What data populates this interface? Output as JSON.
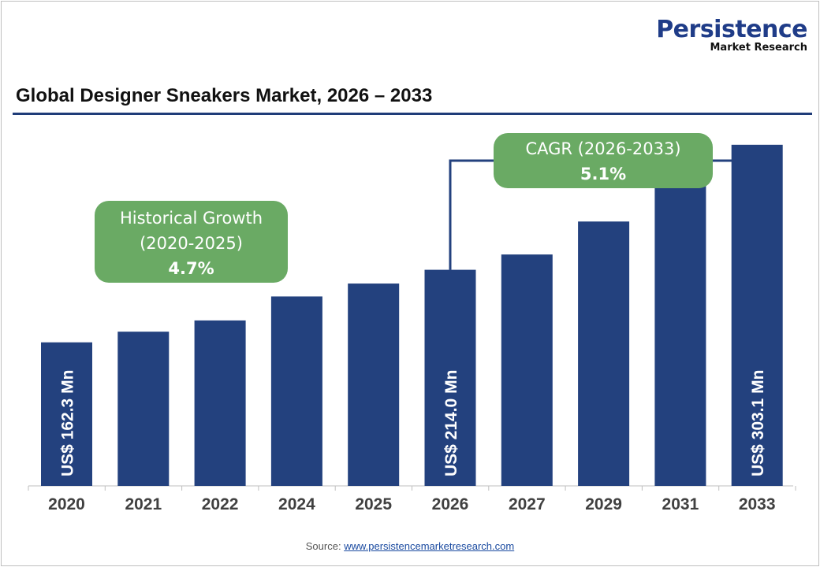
{
  "logo": {
    "main": "Persistence",
    "sub": "Market Research"
  },
  "chart_data": {
    "type": "bar",
    "title": "Global Designer Sneakers Market, 2026 – 2033",
    "categories": [
      "2020",
      "2021",
      "2022",
      "2024",
      "2025",
      "2026",
      "2027",
      "2029",
      "2031",
      "2033"
    ],
    "values": [
      162.3,
      169.9,
      177.9,
      195.0,
      204.2,
      214.0,
      224.9,
      248.4,
      274.4,
      303.1
    ],
    "data_labels": {
      "0": "US$ 162.3 Mn",
      "5": "US$ 214.0 Mn",
      "9": "US$ 303.1 Mn"
    },
    "xlabel": "",
    "ylabel": "",
    "ylim": [
      60,
      310
    ],
    "grid": false,
    "bar_color": "#23417e",
    "annotations": [
      {
        "lines": [
          "Historical Growth",
          "(2020-2025)"
        ],
        "value": "4.7%",
        "color": "#6aaa64"
      },
      {
        "lines": [
          "CAGR (2026-2033)"
        ],
        "value": "5.1%",
        "color": "#6aaa64"
      }
    ]
  },
  "source": {
    "label": "Source: ",
    "link": "www.persistencemarketresearch.com"
  }
}
